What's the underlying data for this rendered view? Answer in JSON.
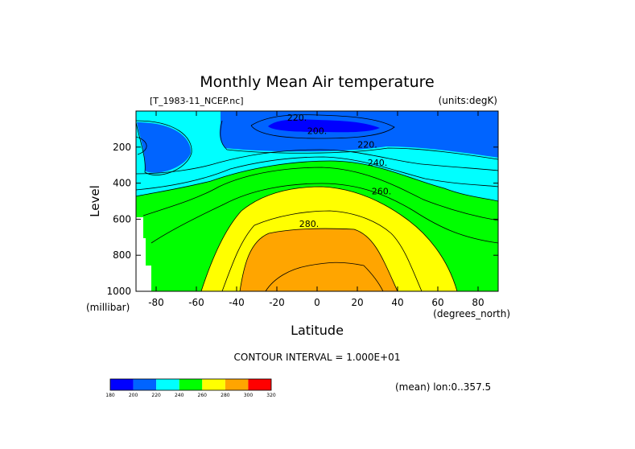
{
  "chart_data": {
    "type": "contour",
    "title": "Monthly Mean Air temperature",
    "file_label": "[T_1983-11_NCEP.nc]",
    "units_label": "(units:degK)",
    "xlabel": "Latitude",
    "ylabel": "Level",
    "x_units": "(degrees_north)",
    "y_units": "(millibar)",
    "xlim": [
      -90,
      90
    ],
    "ylim": [
      1000,
      0
    ],
    "x_ticks": [
      -80,
      -60,
      -40,
      -20,
      0,
      20,
      40,
      60,
      80
    ],
    "y_ticks": [
      200,
      400,
      600,
      800,
      1000
    ],
    "contour_interval_text": "CONTOUR INTERVAL = 1.000E+01",
    "mean_text": "(mean) lon:0..357.5",
    "contour_labels": [
      {
        "text": "220.",
        "lat": -10,
        "level": 35
      },
      {
        "text": "200.",
        "lat": 0,
        "level": 110
      },
      {
        "text": "220.",
        "lat": 25,
        "level": 185
      },
      {
        "text": "240.",
        "lat": 30,
        "level": 285
      },
      {
        "text": "260.",
        "lat": 32,
        "level": 445
      },
      {
        "text": "280.",
        "lat": -4,
        "level": 625
      }
    ],
    "colorbar": {
      "levels": [
        180,
        200,
        220,
        240,
        260,
        280,
        300,
        320
      ],
      "colors": [
        "#0000ff",
        "#0064ff",
        "#00ffff",
        "#00ff00",
        "#ffff00",
        "#ffa500",
        "#ff0000"
      ]
    },
    "band_colors": {
      "t180": "#0000ff",
      "t200": "#0064ff",
      "t220": "#00ffff",
      "t240": "#00ff00",
      "t260": "#ffff00",
      "t280": "#ffa500",
      "t300": "#ff0000",
      "missing": "#ffffff"
    }
  }
}
